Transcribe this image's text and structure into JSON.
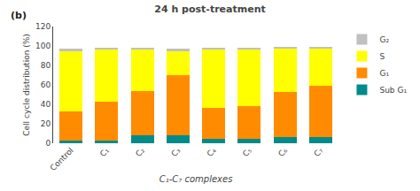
{
  "chart_data": {
    "type": "bar",
    "stacked": true,
    "title": "24 h post-treatment",
    "xlabel": "C₁-C₇ complexes",
    "ylabel": "Cell cycle distribution (%)",
    "categories": [
      "Control",
      "C₁",
      "C₂",
      "C₃",
      "C₄",
      "C₅",
      "C₆",
      "C₇"
    ],
    "series": [
      {
        "name": "Sub G₁",
        "color": "#008B8B",
        "values": [
          3,
          3,
          8,
          8,
          5,
          5,
          6,
          6
        ]
      },
      {
        "name": "G₁",
        "color": "#FF8C00",
        "values": [
          30,
          40,
          46,
          62,
          31,
          33,
          47,
          53
        ]
      },
      {
        "name": "S",
        "color": "#FFFF00",
        "values": [
          62,
          53,
          42,
          25,
          60,
          58,
          44,
          38
        ]
      },
      {
        "name": "G₂",
        "color": "#C0C0C0",
        "values": [
          2.5,
          2.5,
          2.5,
          2.5,
          2.5,
          2.5,
          2.5,
          2.5
        ]
      }
    ],
    "ylim": [
      0,
      120
    ],
    "yticks": [
      0,
      20,
      40,
      60,
      80,
      100,
      120
    ],
    "grid": false,
    "legend": "upper right",
    "annotations": [
      {
        "text": "(b)"
      }
    ]
  }
}
